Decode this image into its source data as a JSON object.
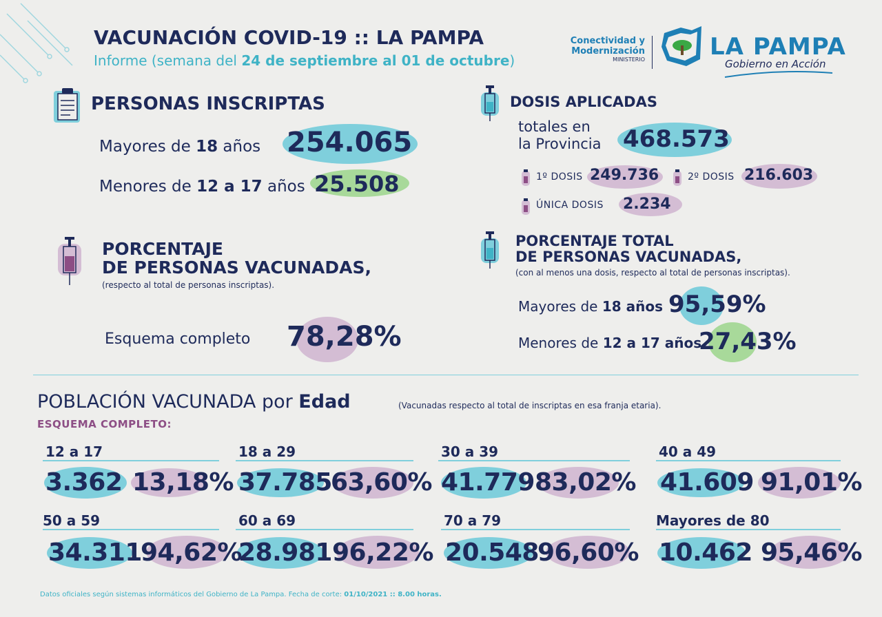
{
  "header": {
    "title": "VACUNACIÓN COVID-19 :: LA PAMPA",
    "subtitle_prefix": "Informe (semana del ",
    "subtitle_bold": "24 de septiembre al 01 de octubre",
    "subtitle_suffix": ")",
    "ministry_line1": "Conectividad y",
    "ministry_line2": "Modernización",
    "ministry_line3": "MINISTERIO",
    "brand": "LA PAMPA",
    "brand_sub": "Gobierno en Acción"
  },
  "inscriptas": {
    "title": "PERSONAS INSCRIPTAS",
    "mayores_label_pre": "Mayores de ",
    "mayores_label_bold": "18",
    "mayores_label_post": " años",
    "mayores_value": "254.065",
    "menores_label_pre": "Menores de ",
    "menores_label_bold": "12 a 17",
    "menores_label_post": " años",
    "menores_value": "25.508"
  },
  "dosis": {
    "title": "DOSIS APLICADAS",
    "totales_line1": "totales en",
    "totales_line2": "la Provincia",
    "totales_value": "468.573",
    "primera_label": "1º DOSIS",
    "primera_value": "249.736",
    "segunda_label": "2º DOSIS",
    "segunda_value": "216.603",
    "unica_label": "ÚNICA DOSIS",
    "unica_value": "2.234"
  },
  "porcentaje": {
    "title_line1": "PORCENTAJE",
    "title_line2": "DE PERSONAS VACUNADAS,",
    "note": "(respecto al total de personas inscriptas).",
    "esquema_label": "Esquema completo",
    "esquema_value": "78,28%"
  },
  "porcentaje_total": {
    "title_line1": "PORCENTAJE TOTAL",
    "title_line2": "DE PERSONAS VACUNADAS,",
    "note": "(con al menos una dosis, respecto al total de personas inscriptas).",
    "mayores_label_pre": "Mayores de ",
    "mayores_label_bold": "18 años",
    "mayores_value": "95,59%",
    "menores_label_pre": "Menores de ",
    "menores_label_bold": "12 a 17 años",
    "menores_value": "27,43%"
  },
  "poblacion": {
    "title_pre": "POBLACIÓN VACUNADA por ",
    "title_bold": "Edad",
    "note": "(Vacunadas respecto al total de inscriptas en esa franja etaria).",
    "esquema_label": "ESQUEMA COMPLETO:",
    "groups": [
      {
        "age": "12 a 17",
        "count": "3.362",
        "pct": "13,18%"
      },
      {
        "age": "18 a 29",
        "count": "37.785",
        "pct": "63,60%"
      },
      {
        "age": "30 a 39",
        "count": "41.779",
        "pct": "83,02%"
      },
      {
        "age": "40 a 49",
        "count": "41.609",
        "pct": "91,01%"
      },
      {
        "age": "50 a 59",
        "count": "34.311",
        "pct": "94,62%"
      },
      {
        "age": "60 a 69",
        "count": "28.981",
        "pct": "96,22%"
      },
      {
        "age": "70 a 79",
        "count": "20.548",
        "pct": "96,60%"
      },
      {
        "age": "Mayores de 80",
        "count": "10.462",
        "pct": "95,46%"
      }
    ]
  },
  "footer": {
    "text": "Datos oficiales según sistemas informáticos del Gobierno de La Pampa. Fecha de corte: ",
    "bold": "01/10/2021 :: 8.00 horas."
  }
}
